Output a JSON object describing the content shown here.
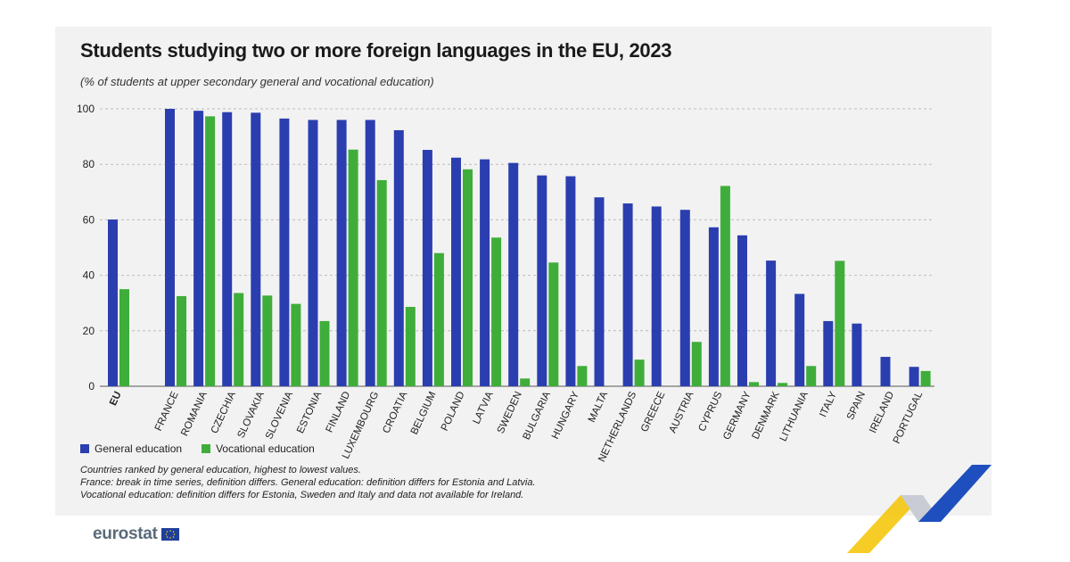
{
  "title": "Students studying two or more foreign languages in the EU, 2023",
  "subtitle": "(% of students at upper secondary general and vocational education)",
  "legend": {
    "general_label": "General education",
    "vocational_label": "Vocational education"
  },
  "notes": [
    "Countries ranked by general education, highest to lowest values.",
    "France: break in time series, definition differs. General education: definition differs for Estonia and Latvia.",
    "Vocational education: definition differs for Estonia, Sweden and Italy and data not available for Ireland."
  ],
  "brand": {
    "name": "eurostat",
    "general_color": "#2b3eb0",
    "vocational_color": "#3fad3a"
  },
  "chart_data": {
    "type": "bar",
    "categories": [
      "EU",
      "FRANCE",
      "ROMANIA",
      "CZECHIA",
      "SLOVAKIA",
      "SLOVENIA",
      "ESTONIA",
      "FINLAND",
      "LUXEMBOURG",
      "CROATIA",
      "BELGIUM",
      "POLAND",
      "LATVIA",
      "SWEDEN",
      "BULGARIA",
      "HUNGARY",
      "MALTA",
      "NETHERLANDS",
      "GREECE",
      "AUSTRIA",
      "CYPRUS",
      "GERMANY",
      "DENMARK",
      "LITHUANIA",
      "ITALY",
      "SPAIN",
      "IRELAND",
      "PORTUGAL"
    ],
    "series": [
      {
        "name": "General education",
        "values": [
          60.1,
          100,
          99.3,
          98.8,
          98.6,
          96.5,
          96.0,
          96.0,
          96.0,
          92.3,
          85.2,
          82.4,
          81.8,
          80.5,
          76.0,
          75.7,
          68.1,
          65.9,
          64.8,
          63.6,
          57.3,
          54.4,
          45.3,
          33.3,
          23.5,
          22.6,
          10.6,
          7.0
        ]
      },
      {
        "name": "Vocational education",
        "values": [
          35.0,
          32.5,
          97.3,
          33.6,
          32.7,
          29.7,
          23.5,
          85.3,
          74.3,
          28.6,
          48.0,
          78.2,
          53.6,
          2.8,
          44.6,
          7.3,
          null,
          9.6,
          null,
          16.0,
          72.2,
          1.5,
          1.2,
          7.3,
          45.2,
          null,
          null,
          5.5
        ]
      }
    ],
    "y_ticks": [
      0,
      20,
      40,
      60,
      80,
      100
    ],
    "ylim": [
      0,
      100
    ],
    "grid": true,
    "legend_position": "bottom-left"
  }
}
